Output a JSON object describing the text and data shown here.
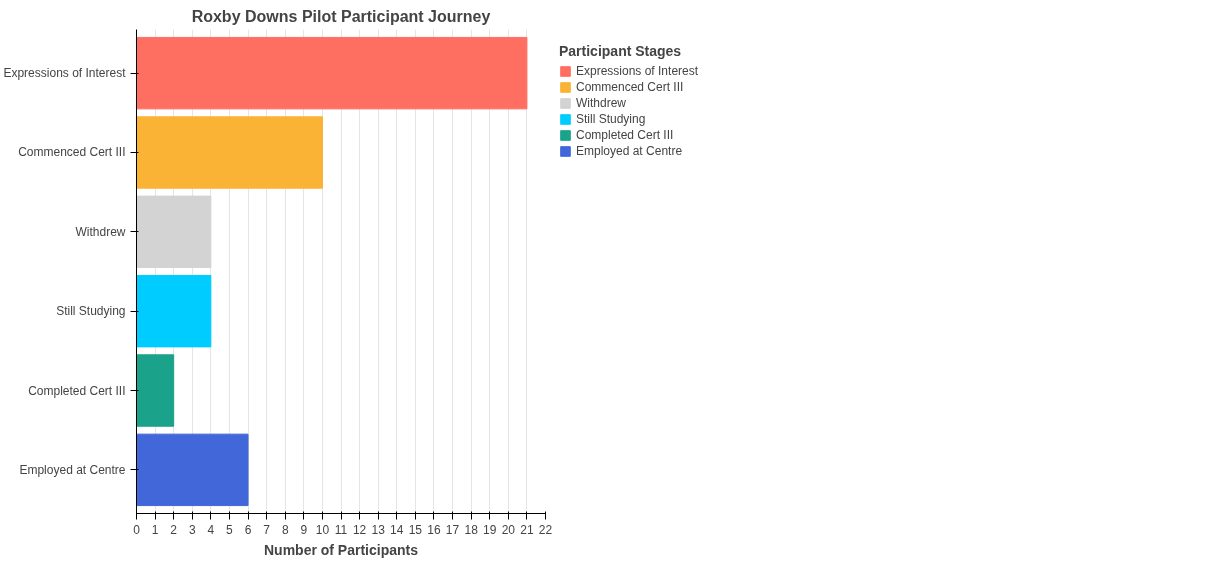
{
  "chart_data": {
    "type": "bar",
    "orientation": "horizontal",
    "title": "Roxby Downs Pilot Participant Journey",
    "xlabel": "Number of Participants",
    "legend_title": "Participant Stages",
    "categories": [
      "Expressions of Interest",
      "Commenced Cert III",
      "Withdrew",
      "Still Studying",
      "Completed Cert III",
      "Employed at Centre"
    ],
    "series": [
      {
        "name": "Expressions of Interest",
        "color": "#ff6f61",
        "values": [
          21,
          null,
          null,
          null,
          null,
          null
        ]
      },
      {
        "name": "Commenced Cert III",
        "color": "#fbb335",
        "values": [
          null,
          10,
          null,
          null,
          null,
          null
        ]
      },
      {
        "name": "Withdrew",
        "color": "#d3d3d3",
        "values": [
          null,
          null,
          4,
          null,
          null,
          null
        ]
      },
      {
        "name": "Still Studying",
        "color": "#00ccff",
        "values": [
          null,
          null,
          null,
          4,
          null,
          null
        ]
      },
      {
        "name": "Completed Cert III",
        "color": "#1aa38a",
        "values": [
          null,
          null,
          null,
          null,
          2,
          null
        ]
      },
      {
        "name": "Employed at Centre",
        "color": "#4267d9",
        "values": [
          null,
          null,
          null,
          null,
          null,
          6
        ]
      }
    ],
    "xlim": [
      0,
      22
    ],
    "xticks": [
      0,
      1,
      2,
      3,
      4,
      5,
      6,
      7,
      8,
      9,
      10,
      11,
      12,
      13,
      14,
      15,
      16,
      17,
      18,
      19,
      20,
      21,
      22
    ],
    "grid": "x",
    "legend": "top right"
  }
}
